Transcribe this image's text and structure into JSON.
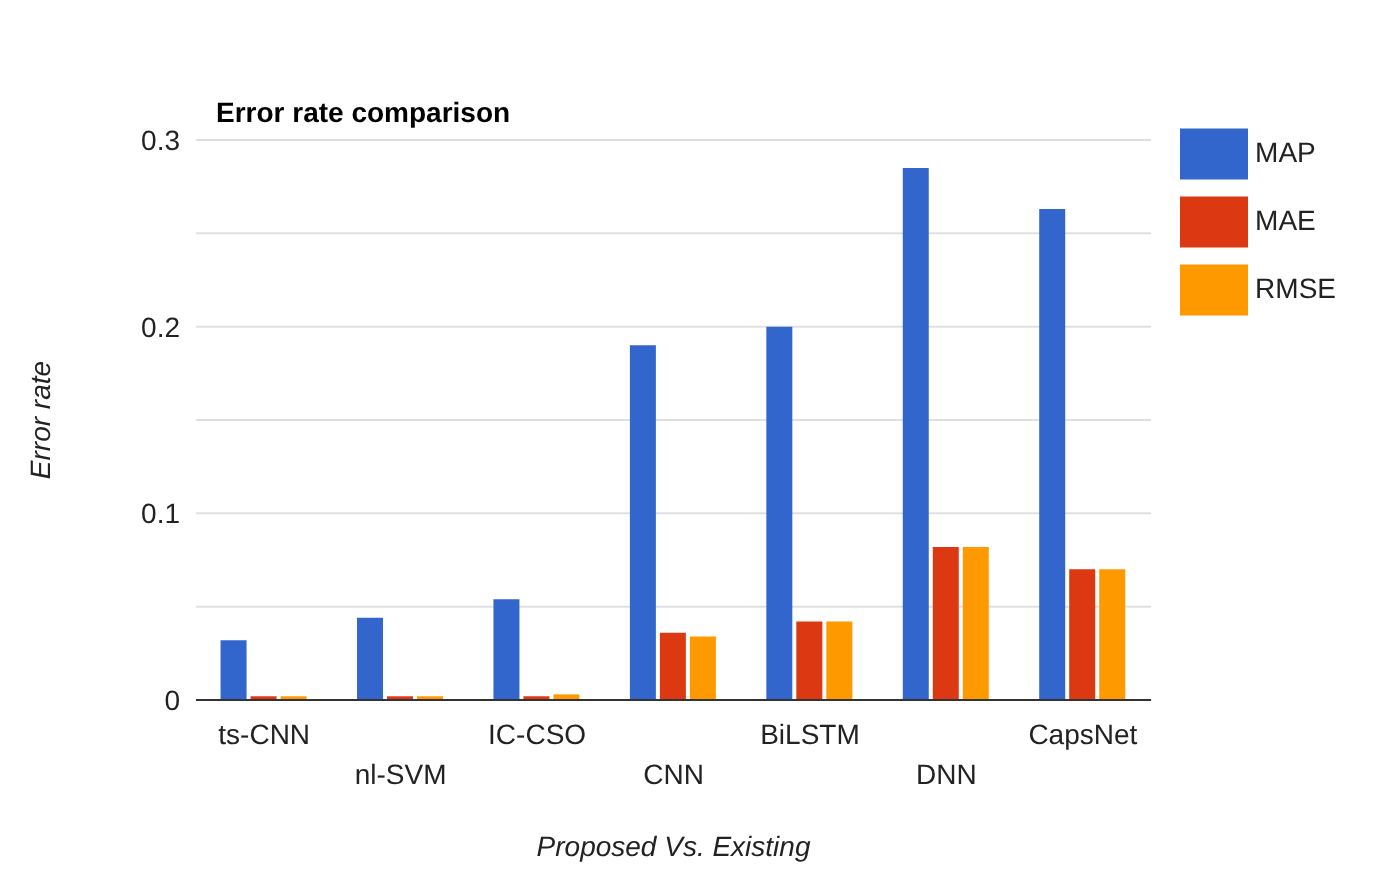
{
  "chart_data": {
    "type": "bar",
    "title": "Error rate comparison",
    "xlabel": "Proposed Vs. Existing",
    "ylabel": "Error rate",
    "categories": [
      "ts-CNN",
      "nl-SVM",
      "IC-CSO",
      "CNN",
      "BiLSTM",
      "DNN",
      "CapsNet"
    ],
    "series": [
      {
        "name": "MAP",
        "color": "#3366cc",
        "values": [
          0.032,
          0.044,
          0.054,
          0.19,
          0.2,
          0.285,
          0.263
        ]
      },
      {
        "name": "MAE",
        "color": "#dc3912",
        "values": [
          0.002,
          0.002,
          0.002,
          0.036,
          0.042,
          0.082,
          0.07
        ]
      },
      {
        "name": "RMSE",
        "color": "#ff9900",
        "values": [
          0.002,
          0.002,
          0.003,
          0.034,
          0.042,
          0.082,
          0.07
        ]
      }
    ],
    "ylim": [
      0,
      0.3
    ],
    "yticks": [
      0,
      {
        "value": 0.05,
        "label": null
      },
      0.1,
      {
        "value": 0.15,
        "label": null
      },
      0.2,
      {
        "value": 0.25,
        "label": null
      },
      0.3
    ],
    "grid": "y",
    "legend": "top right"
  }
}
